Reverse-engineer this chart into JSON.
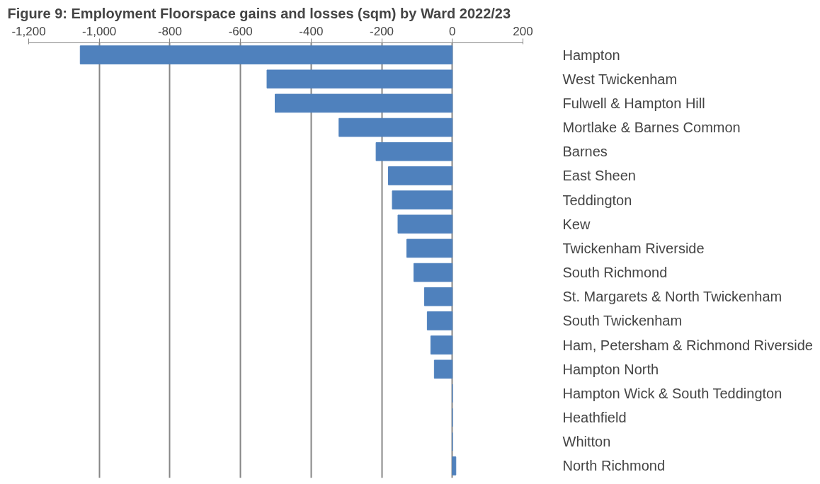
{
  "chart_data": {
    "type": "bar",
    "orientation": "horizontal",
    "title": "Figure 9: Employment Floorspace gains and losses (sqm) by Ward 2022/23",
    "categories": [
      "Hampton",
      "West Twickenham",
      "Fulwell & Hampton Hill",
      "Mortlake & Barnes Common",
      "Barnes",
      "East Sheen",
      "Teddington",
      "Kew",
      "Twickenham Riverside",
      "South Richmond",
      "St. Margarets & North Twickenham",
      "South Twickenham",
      "Ham, Petersham & Richmond Riverside",
      "Hampton North",
      "Hampton Wick & South Teddington",
      "Heathfield",
      "Whitton",
      "North Richmond"
    ],
    "values": [
      -1054,
      -525,
      -502,
      -321,
      -216,
      -181,
      -170,
      -154,
      -129,
      -109,
      -79,
      -71,
      -61,
      -51,
      0,
      0,
      0,
      10
    ],
    "color": "#4f81bd",
    "xlim": [
      -1200,
      200
    ],
    "xticks": [
      {
        "value": -1200,
        "label": "-1,200"
      },
      {
        "value": -1000,
        "label": "-1,000"
      },
      -800,
      -600,
      -400,
      -200,
      0,
      200
    ],
    "grid": "x"
  }
}
